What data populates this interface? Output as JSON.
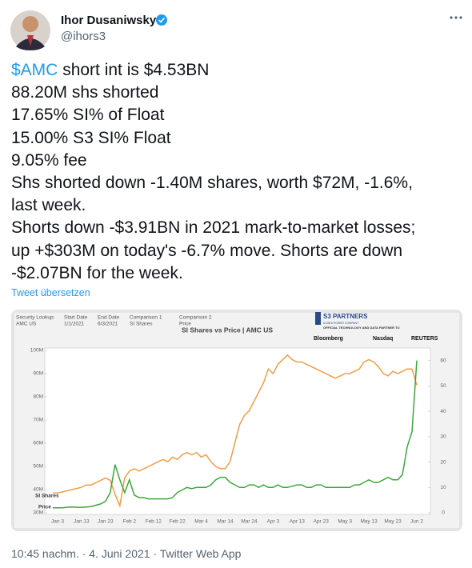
{
  "tweet": {
    "name": "Ihor Dusaniwsky",
    "handle": "@ihors3",
    "cashtag": "$AMC",
    "lines": [
      " short int is $4.53BN",
      "88.20M shs shorted",
      "17.65% SI% of Float",
      "15.00% S3 SI% Float",
      "9.05% fee",
      "Shs shorted down -1.40M shares, worth $72M, -1.6%,",
      "last week.",
      "Shorts down -$3.91BN in 2021 mark-to-market losses;",
      "up +$303M on today's -6.7% move. Shorts are down",
      "-$2.07BN for the week."
    ],
    "translate": "Tweet übersetzen",
    "footer": "10:45 nachm. · 4. Juni 2021 · Twitter Web App"
  },
  "chart_data": {
    "type": "line",
    "title": "SI Shares vs Price | AMC US",
    "header": [
      {
        "label": "Security Lookup:",
        "value": "AMC US"
      },
      {
        "label": "Start Date",
        "value": "1/1/2021"
      },
      {
        "label": "End Date",
        "value": "6/3/2021"
      },
      {
        "label": "Comparison 1",
        "value": "SI Shares"
      },
      {
        "label": "Comparison 2",
        "value": "Price"
      }
    ],
    "brand": {
      "name": "S3 PARTNERS",
      "tagline": "A DATA POWER COMPANY",
      "partner": "OFFICIAL TECHNOLOGY AND DATA PARTNER TO",
      "logos": [
        "Bloomberg",
        "Nasdaq",
        "REUTERS"
      ]
    },
    "categories": [
      null,
      "Jan 3",
      null,
      null,
      null,
      null,
      "Jan 13",
      null,
      null,
      null,
      null,
      "Jan 23",
      null,
      null,
      null,
      null,
      "Feb 2",
      null,
      null,
      null,
      null,
      "Feb 12",
      null,
      null,
      null,
      null,
      "Feb 22",
      null,
      null,
      null,
      null,
      "Mar 4",
      null,
      null,
      null,
      null,
      "Mar 14",
      null,
      null,
      null,
      null,
      "Mar 24",
      null,
      null,
      null,
      null,
      "Apr 3",
      null,
      null,
      null,
      null,
      "Apr 13",
      null,
      null,
      null,
      null,
      "Apr 23",
      null,
      null,
      null,
      null,
      "May 3",
      null,
      null,
      null,
      null,
      "May 13",
      null,
      null,
      null,
      null,
      "May 23",
      null,
      null,
      null,
      null,
      "Jun 2"
    ],
    "series": [
      {
        "name": "SI Shares",
        "color": "#f39c45",
        "values": [
          38500000,
          38500000,
          39000000,
          39500000,
          40000000,
          40500000,
          41000000,
          42000000,
          42000000,
          43000000,
          44000000,
          45000000,
          44000000,
          38000000,
          33000000,
          45000000,
          48000000,
          49000000,
          48000000,
          49000000,
          50000000,
          51000000,
          52000000,
          53000000,
          52000000,
          54000000,
          53000000,
          55000000,
          56000000,
          55000000,
          56000000,
          54000000,
          55000000,
          52000000,
          50000000,
          49000000,
          49000000,
          52000000,
          60000000,
          68000000,
          72000000,
          74000000,
          78000000,
          82000000,
          86000000,
          92000000,
          90000000,
          94000000,
          96000000,
          98000000,
          96000000,
          95000000,
          95000000,
          94000000,
          93000000,
          92000000,
          91000000,
          90000000,
          89000000,
          88000000,
          89000000,
          90000000,
          90000000,
          91000000,
          92000000,
          95000000,
          96000000,
          95000000,
          93000000,
          90000000,
          89000000,
          91000000,
          90000000,
          91000000,
          92000000,
          92000000,
          85000000
        ]
      },
      {
        "name": "Price",
        "color": "#3aa83a",
        "axis": "y2",
        "values": [
          2,
          2,
          2,
          2.2,
          2.3,
          2.2,
          2.1,
          2.3,
          2.5,
          3,
          3.5,
          4.5,
          8,
          19,
          13,
          8,
          13,
          7,
          6,
          6,
          5.5,
          5.5,
          5.5,
          5.5,
          5.5,
          6,
          8,
          9,
          10,
          9.5,
          10,
          10,
          10,
          11,
          13,
          14,
          14,
          12,
          11,
          10,
          10,
          11,
          11,
          10,
          11,
          10,
          10,
          11,
          10,
          10,
          10.5,
          11,
          11,
          10,
          10,
          11,
          11,
          10,
          10,
          10,
          10,
          10,
          10,
          11,
          11,
          12,
          13,
          12,
          12,
          13,
          14,
          13,
          13,
          15,
          26,
          32,
          60
        ]
      }
    ],
    "ylim": [
      30000000,
      100000000
    ],
    "yticks": [
      {
        "value": 30000000,
        "label": "30M"
      },
      {
        "value": 40000000,
        "label": "40M"
      },
      {
        "value": 50000000,
        "label": "50M"
      },
      {
        "value": 60000000,
        "label": "60M"
      },
      {
        "value": 70000000,
        "label": "70M"
      },
      {
        "value": 80000000,
        "label": "80M"
      },
      {
        "value": 90000000,
        "label": "90M"
      },
      {
        "value": 100000000,
        "label": "100M"
      }
    ],
    "y2lim": [
      0,
      64
    ],
    "y2ticks": [
      0,
      10,
      20,
      30,
      40,
      50,
      60
    ]
  }
}
